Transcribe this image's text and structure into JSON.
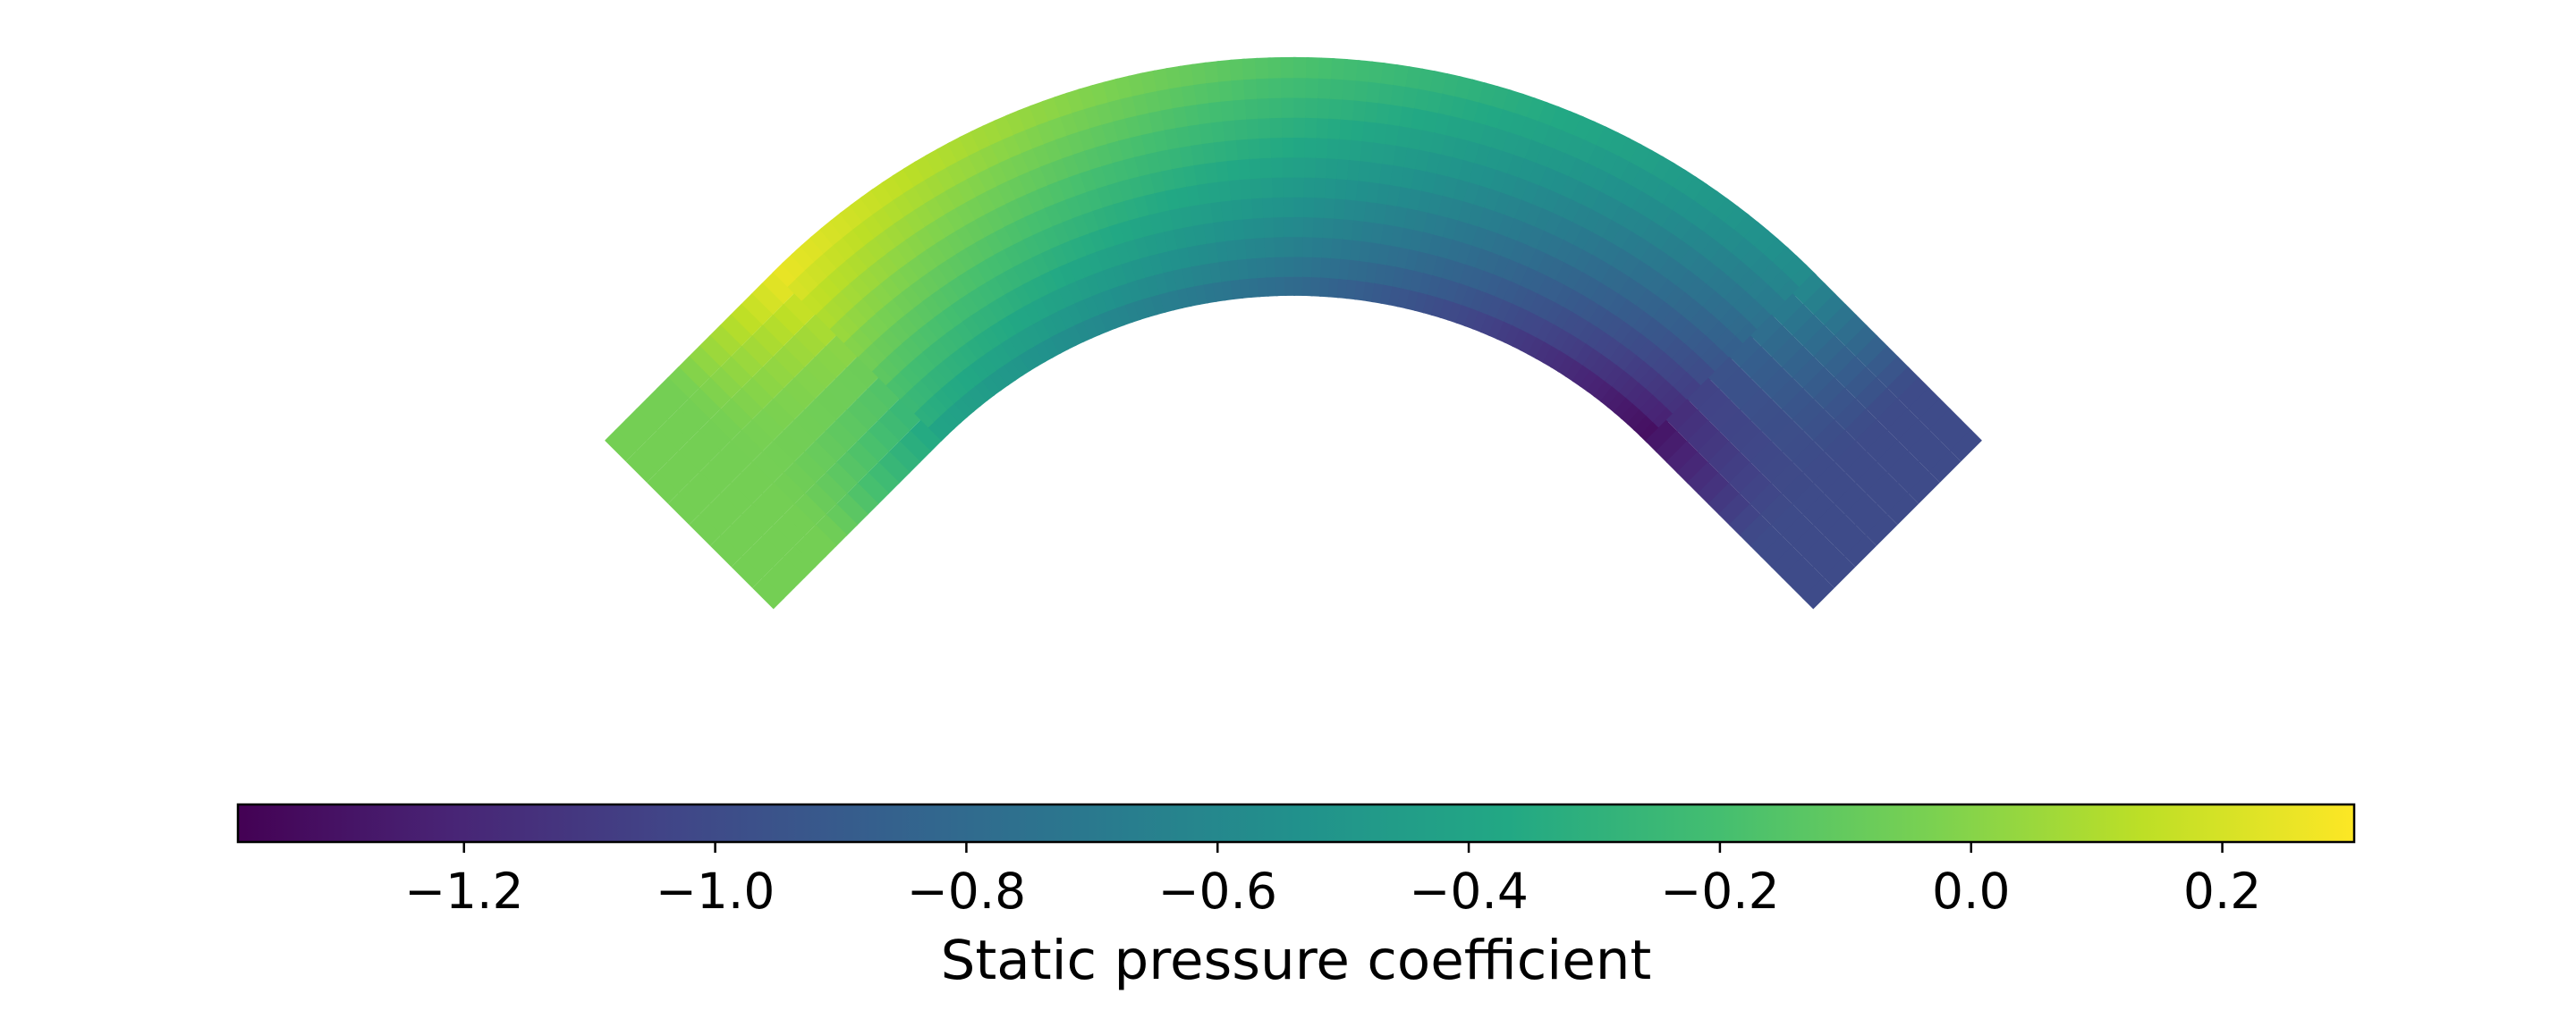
{
  "chart_data": {
    "type": "heatmap",
    "title": "",
    "colorbar": {
      "label": "Static pressure coefficient",
      "colormap": "viridis",
      "range": [
        -1.38,
        0.305
      ],
      "ticks": [
        -1.2,
        -1.0,
        -0.8,
        -0.6,
        -0.4,
        -0.2,
        0.0,
        0.2
      ],
      "tick_labels": [
        "−1.2",
        "−1.0",
        "−0.8",
        "−0.6",
        "−0.4",
        "−0.2",
        "0.0",
        "0.2"
      ],
      "orientation": "horizontal",
      "placement": "bottom"
    },
    "field": {
      "geometry": "curved duct (arched bend between two straight legs)",
      "samples": [
        {
          "location": "inlet leg",
          "value": -0.05
        },
        {
          "location": "bend start, outer wall",
          "value": 0.28
        },
        {
          "location": "bend start, inner wall",
          "value": -0.45
        },
        {
          "location": "apex, outer wall",
          "value": -0.15
        },
        {
          "location": "apex, inner wall",
          "value": -0.85
        },
        {
          "location": "bend end, outer wall",
          "value": -0.55
        },
        {
          "location": "bend end, inner wall",
          "value": -1.38
        },
        {
          "location": "outlet leg",
          "value": -1.0
        }
      ]
    }
  }
}
